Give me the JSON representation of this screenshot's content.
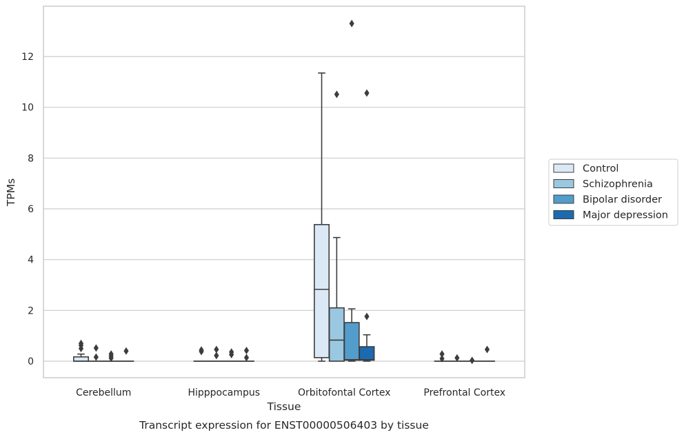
{
  "chart_data": {
    "type": "box",
    "title": "",
    "caption": "Transcript expression for ENST00000506403 by tissue",
    "xlabel": "Tissue",
    "ylabel": "TPMs",
    "ylim": [
      -0.65,
      13.9
    ],
    "yticks": [
      0,
      2,
      4,
      6,
      8,
      10,
      12
    ],
    "grid": "horizontal",
    "legend_position": "right",
    "categories": [
      "Cerebellum",
      "Hipppocampus",
      "Orbitofontal Cortex",
      "Prefrontal Cortex"
    ],
    "series": [
      {
        "name": "Control",
        "color": "#dbe9f6",
        "boxes": [
          {
            "min": 0,
            "q1": 0,
            "median": 0,
            "q3": 0.17,
            "max": 0.28,
            "outliers": [
              0.5,
              0.62,
              0.7
            ]
          },
          {
            "min": 0,
            "q1": 0,
            "median": 0,
            "q3": 0,
            "max": 0,
            "outliers": [
              0.38,
              0.44
            ]
          },
          {
            "min": 0,
            "q1": 0.14,
            "median": 2.83,
            "q3": 5.38,
            "max": 11.35,
            "outliers": []
          },
          {
            "min": 0,
            "q1": 0,
            "median": 0,
            "q3": 0,
            "max": 0,
            "outliers": [
              0.1,
              0.28
            ]
          }
        ]
      },
      {
        "name": "Schizophrenia",
        "color": "#9ac8e0",
        "boxes": [
          {
            "min": 0,
            "q1": 0,
            "median": 0,
            "q3": 0,
            "max": 0,
            "outliers": [
              0.16,
              0.52
            ]
          },
          {
            "min": 0,
            "q1": 0,
            "median": 0,
            "q3": 0,
            "max": 0,
            "outliers": [
              0.22,
              0.46
            ]
          },
          {
            "min": 0,
            "q1": 0,
            "median": 0.83,
            "q3": 2.1,
            "max": 4.87,
            "outliers": [
              10.51
            ]
          },
          {
            "min": 0,
            "q1": 0,
            "median": 0,
            "q3": 0,
            "max": 0,
            "outliers": [
              0.13
            ]
          }
        ]
      },
      {
        "name": "Bipolar disorder",
        "color": "#529dcc",
        "boxes": [
          {
            "min": 0,
            "q1": 0,
            "median": 0,
            "q3": 0,
            "max": 0,
            "outliers": [
              0.12,
              0.2,
              0.28
            ]
          },
          {
            "min": 0,
            "q1": 0,
            "median": 0,
            "q3": 0,
            "max": 0,
            "outliers": [
              0.26,
              0.36
            ]
          },
          {
            "min": 0,
            "q1": 0.04,
            "median": 0.06,
            "q3": 1.52,
            "max": 2.06,
            "outliers": [
              13.3
            ]
          },
          {
            "min": 0,
            "q1": 0,
            "median": 0,
            "q3": 0,
            "max": 0,
            "outliers": [
              0.03
            ]
          }
        ]
      },
      {
        "name": "Major depression",
        "color": "#1c6aaf",
        "boxes": [
          {
            "min": 0,
            "q1": 0,
            "median": 0,
            "q3": 0,
            "max": 0,
            "outliers": [
              0.4
            ]
          },
          {
            "min": 0,
            "q1": 0,
            "median": 0,
            "q3": 0,
            "max": 0,
            "outliers": [
              0.14,
              0.42
            ]
          },
          {
            "min": 0,
            "q1": 0.04,
            "median": 0.06,
            "q3": 0.57,
            "max": 1.04,
            "outliers": [
              1.76,
              10.56
            ]
          },
          {
            "min": 0,
            "q1": 0,
            "median": 0,
            "q3": 0,
            "max": 0,
            "outliers": [
              0.46
            ]
          }
        ]
      }
    ]
  }
}
